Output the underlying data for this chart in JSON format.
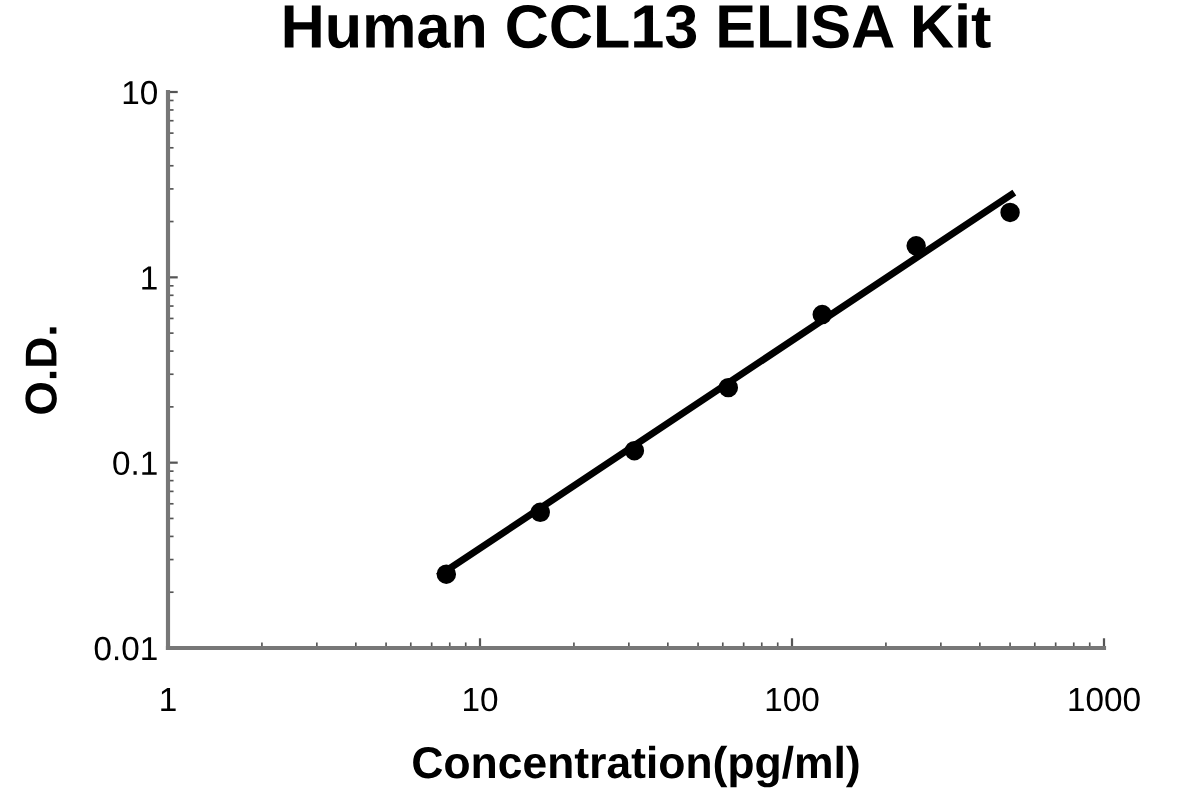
{
  "chart_data": {
    "type": "scatter",
    "title": "Human CCL13 ELISA Kit",
    "xlabel": "Concentration(pg/ml)",
    "ylabel": "O.D.",
    "log": "xy",
    "xlim": [
      1,
      1000
    ],
    "ylim": [
      0.01,
      10
    ],
    "xticks": [
      1,
      10,
      100,
      1000
    ],
    "yticks": [
      0.01,
      0.1,
      1,
      10
    ],
    "grid": false,
    "legend": false,
    "marker": "circle",
    "series": [
      {
        "color": "#000000",
        "x": [
          7.8,
          15.6,
          31.25,
          62.5,
          125,
          250,
          500
        ],
        "values": [
          0.025,
          0.054,
          0.116,
          0.254,
          0.63,
          1.48,
          2.24
        ]
      },
      {
        "type": "line",
        "color": "#000000",
        "marker": "none",
        "x": [
          7.5,
          505
        ],
        "values": [
          0.025,
          2.8
        ]
      }
    ]
  }
}
